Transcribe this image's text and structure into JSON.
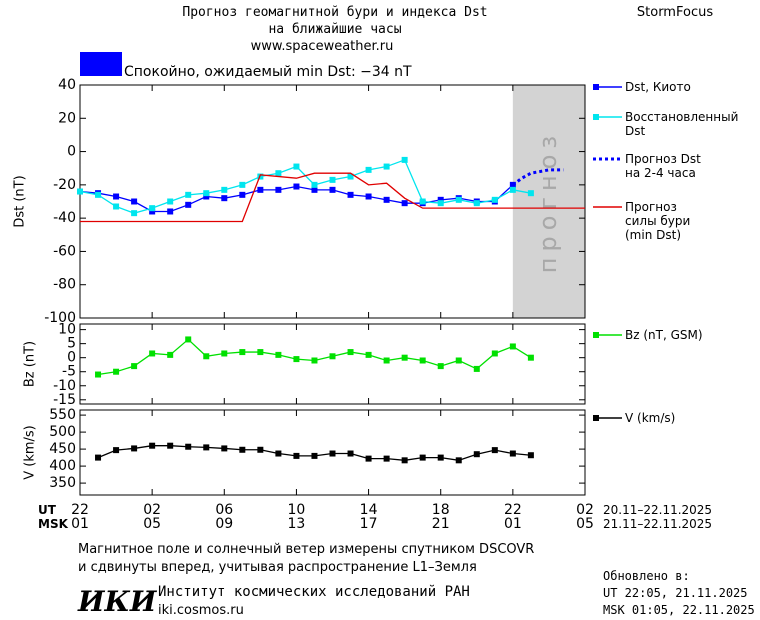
{
  "header": {
    "title": "Прогноз геомагнитной бури и индекса Dst\nна ближайшие часы",
    "url": "www.spaceweather.ru",
    "brand": "StormFocus"
  },
  "status": {
    "text": "Спокойно, ожидаемый min Dst: −34 nT",
    "color": "#0000ff"
  },
  "chart_data": [
    {
      "type": "line",
      "ylabel": "Dst (nT)",
      "xlim": [
        0,
        28
      ],
      "ylim": [
        -100,
        40
      ],
      "yticks": [
        -100,
        -80,
        -60,
        -40,
        -20,
        0,
        20,
        40
      ],
      "forecast_region": {
        "xlim": [
          24,
          28
        ],
        "label": "прогноз",
        "color": "#d3d3d3"
      },
      "series": [
        {
          "name": "Dst, Киото",
          "color": "#0000ff",
          "marker": true,
          "x": [
            0,
            1,
            2,
            3,
            4,
            5,
            6,
            7,
            8,
            9,
            10,
            11,
            12,
            13,
            14,
            15,
            16,
            17,
            18,
            19,
            20,
            21,
            22,
            23,
            24
          ],
          "values": [
            -24,
            -25,
            -27,
            -30,
            -36,
            -36,
            -32,
            -27,
            -28,
            -26,
            -23,
            -23,
            -21,
            -23,
            -23,
            -26,
            -27,
            -29,
            -31,
            -31,
            -29,
            -28,
            -30,
            -30,
            -20
          ]
        },
        {
          "name": "Восстановленный\nDst",
          "color": "#00e5ee",
          "marker": true,
          "x": [
            0,
            1,
            2,
            3,
            4,
            5,
            6,
            7,
            8,
            9,
            10,
            11,
            12,
            13,
            14,
            15,
            16,
            17,
            18,
            19,
            20,
            21,
            22,
            23,
            24,
            25
          ],
          "values": [
            -24,
            -26,
            -33,
            -37,
            -34,
            -30,
            -26,
            -25,
            -23,
            -20,
            -15,
            -13,
            -9,
            -20,
            -17,
            -15,
            -11,
            -9,
            -5,
            -30,
            -31,
            -29,
            -31,
            -29,
            -23,
            -25
          ]
        },
        {
          "name": "Прогноз Dst\nна 2-4 часа",
          "color": "#0000ff",
          "dash": "dotted",
          "x": [
            24,
            24.5,
            25,
            25.5,
            26,
            26.8
          ],
          "values": [
            -20,
            -16,
            -13,
            -12,
            -11,
            -11
          ]
        },
        {
          "name": "Прогноз\nсилы бури\n(min Dst)",
          "color": "#e00000",
          "x": [
            0,
            9,
            10,
            12,
            13,
            15,
            16,
            17,
            18,
            19,
            28
          ],
          "values": [
            -42,
            -42,
            -14,
            -16,
            -13,
            -13,
            -20,
            -19,
            -28,
            -34,
            -34
          ]
        }
      ]
    },
    {
      "type": "line",
      "ylabel": "Bz (nT)",
      "xlim": [
        0,
        28
      ],
      "ylim": [
        -16.5,
        12
      ],
      "yticks": [
        -15,
        -10,
        -5,
        0,
        5,
        10
      ],
      "series": [
        {
          "name": "Bz (nT, GSM)",
          "color": "#00e000",
          "marker": true,
          "x": [
            1,
            2,
            3,
            4,
            5,
            6,
            7,
            8,
            9,
            10,
            11,
            12,
            13,
            14,
            15,
            16,
            17,
            18,
            19,
            20,
            21,
            22,
            23,
            24,
            25
          ],
          "values": [
            -6,
            -5,
            -3,
            1.5,
            1,
            6.5,
            0.5,
            1.5,
            2,
            2,
            1,
            -0.5,
            -1,
            0.5,
            2,
            1,
            -1,
            0,
            -1,
            -3,
            -1,
            -4,
            1.5,
            4,
            0
          ]
        }
      ]
    },
    {
      "type": "line",
      "ylabel": "V (km/s)",
      "xlim": [
        0,
        28
      ],
      "ylim": [
        315,
        565
      ],
      "yticks": [
        350,
        400,
        450,
        500,
        550
      ],
      "xlabel": "UT",
      "x2label": "MSK",
      "x_date_range": "20.11–22.11.2025",
      "x2_date_range": "21.11–22.11.2025",
      "xticks": [
        {
          "value": 0,
          "label": "22"
        },
        {
          "value": 4,
          "label": "02"
        },
        {
          "value": 8,
          "label": "06"
        },
        {
          "value": 12,
          "label": "10"
        },
        {
          "value": 16,
          "label": "14"
        },
        {
          "value": 20,
          "label": "18"
        },
        {
          "value": 24,
          "label": "22"
        },
        {
          "value": 28,
          "label": "02"
        }
      ],
      "x2ticks": [
        {
          "value": 0,
          "label": "01"
        },
        {
          "value": 4,
          "label": "05"
        },
        {
          "value": 8,
          "label": "09"
        },
        {
          "value": 12,
          "label": "13"
        },
        {
          "value": 16,
          "label": "17"
        },
        {
          "value": 20,
          "label": "21"
        },
        {
          "value": 24,
          "label": "01"
        },
        {
          "value": 28,
          "label": "05"
        }
      ],
      "series": [
        {
          "name": "V (km/s)",
          "color": "#000000",
          "marker": true,
          "x": [
            1,
            2,
            3,
            4,
            5,
            6,
            7,
            8,
            9,
            10,
            11,
            12,
            13,
            14,
            15,
            16,
            17,
            18,
            19,
            20,
            21,
            22,
            23,
            24,
            25
          ],
          "values": [
            425,
            447,
            452,
            460,
            460,
            457,
            455,
            452,
            448,
            448,
            437,
            430,
            430,
            437,
            437,
            422,
            422,
            417,
            425,
            425,
            417,
            435,
            447,
            437,
            432
          ]
        }
      ]
    }
  ],
  "footer": {
    "note": "Магнитное поле и солнечный ветер измерены спутником DSCOVR\nи сдвинуты вперед, учитывая распространение L1–Земля",
    "logo": "ИКИ",
    "institute": "Институт космических исследований РАН",
    "site": "iki.cosmos.ru",
    "updated_title": "Обновлено в:",
    "updated_ut": "UT  22:05, 21.11.2025",
    "updated_msk": "MSK 01:05, 22.11.2025"
  }
}
